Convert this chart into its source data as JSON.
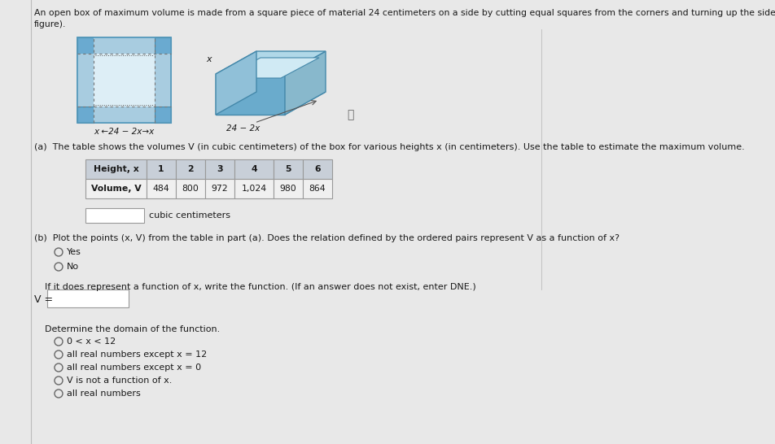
{
  "title_line1": "An open box of maximum volume is made from a square piece of material 24 centimeters on a side by cutting equal squares from the corners and turning up the sides (see",
  "title_line2": "figure).",
  "part_a_text": "(a)  The table shows the volumes V (in cubic centimeters) of the box for various heights x (in centimeters). Use the table to estimate the maximum volume.",
  "table_headers": [
    "Height, x",
    "1",
    "2",
    "3",
    "4",
    "5",
    "6"
  ],
  "table_row2_label": "Volume, V",
  "table_values": [
    "484",
    "800",
    "972",
    "1,024",
    "980",
    "864"
  ],
  "input_label": "cubic centimeters",
  "part_b_text": "(b)  Plot the points (x, V) from the table in part (a). Does the relation defined by the ordered pairs represent V as a function of x?",
  "radio_yes": "Yes",
  "radio_no": "No",
  "function_prompt": "If it does represent a function of x, write the function. (If an answer does not exist, enter DNE.)",
  "v_label": "V =",
  "domain_prompt": "Determine the domain of the function.",
  "domain_options": [
    "0 < x < 12",
    "all real numbers except x = 12",
    "all real numbers except x = 0",
    "V is not a function of x.",
    "all real numbers"
  ],
  "figure_bottom_label": "x ←24 − 2x→x",
  "figure_x_label": "x",
  "figure_24m2x": "24 − 2x",
  "info_char": "ⓘ",
  "bg_color": "#e8e8e8",
  "white": "#ffffff",
  "text_color": "#1a1a1a",
  "table_header_bg": "#c8cfd8",
  "table_cell_bg": "#f0f0f0",
  "table_border": "#999999",
  "sq_blue_light": "#a8cce0",
  "sq_blue_corner": "#6aaad0",
  "sq_blue_mid": "#c8dce8",
  "box3d_front": "#6aabcc",
  "box3d_side": "#88b8cc",
  "box3d_top": "#b0d8e8",
  "box3d_inner": "#d0eaf4",
  "box3d_edge": "#4488aa"
}
